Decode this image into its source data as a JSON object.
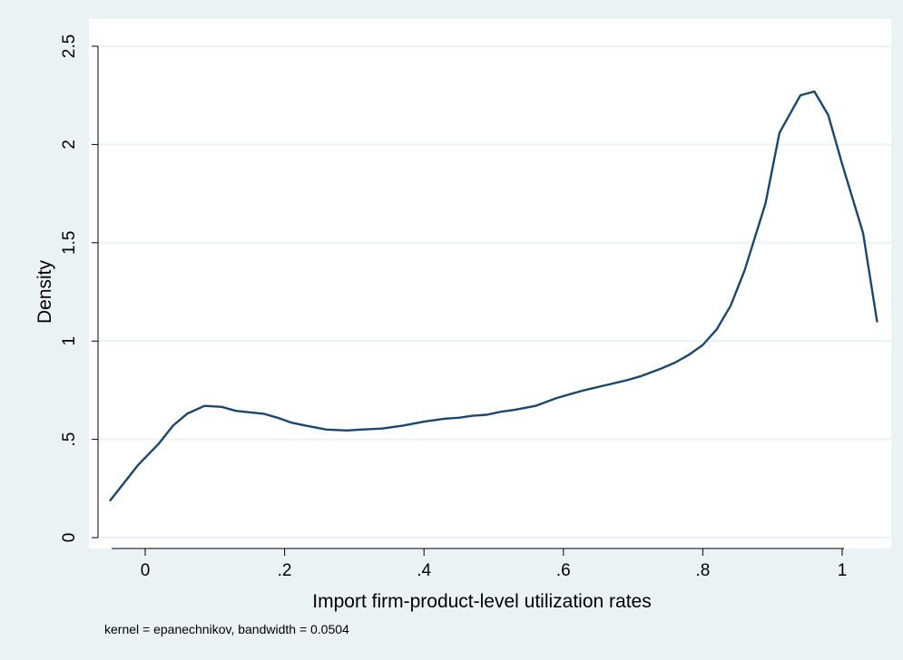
{
  "chart_data": {
    "type": "line",
    "title": "",
    "xlabel": "Import firm-product-level utilization rates",
    "ylabel": "Density",
    "note": "kernel = epanechnikov, bandwidth = 0.0504",
    "xlim": [
      -0.05,
      1.05
    ],
    "ylim": [
      0,
      2.5
    ],
    "xticks": [
      0,
      0.2,
      0.4,
      0.6,
      0.8,
      1
    ],
    "xtick_labels": [
      "0",
      ".2",
      ".4",
      ".6",
      ".8",
      "1"
    ],
    "yticks": [
      0,
      0.5,
      1,
      1.5,
      2,
      2.5
    ],
    "ytick_labels": [
      "0",
      ".5",
      "1",
      "1.5",
      "2",
      "2.5"
    ],
    "grid": true,
    "colors": {
      "background": "#eaf2f3",
      "plot": "#ffffff",
      "line": "#1a476f",
      "grid": "#eaf2f3"
    },
    "series": [
      {
        "x": [
          -0.05,
          -0.03,
          -0.01,
          0.02,
          0.04,
          0.06,
          0.085,
          0.11,
          0.13,
          0.17,
          0.19,
          0.21,
          0.23,
          0.26,
          0.29,
          0.31,
          0.34,
          0.37,
          0.4,
          0.43,
          0.45,
          0.47,
          0.49,
          0.51,
          0.53,
          0.56,
          0.59,
          0.61,
          0.63,
          0.66,
          0.69,
          0.71,
          0.74,
          0.76,
          0.78,
          0.8,
          0.82,
          0.84,
          0.86,
          0.89,
          0.91,
          0.94,
          0.96,
          0.98,
          1.0,
          1.03,
          1.05
        ],
        "y": [
          0.19,
          0.28,
          0.37,
          0.48,
          0.57,
          0.63,
          0.67,
          0.665,
          0.645,
          0.63,
          0.61,
          0.585,
          0.57,
          0.55,
          0.545,
          0.55,
          0.555,
          0.57,
          0.59,
          0.605,
          0.61,
          0.62,
          0.625,
          0.64,
          0.65,
          0.67,
          0.71,
          0.73,
          0.75,
          0.775,
          0.8,
          0.82,
          0.86,
          0.89,
          0.93,
          0.98,
          1.06,
          1.18,
          1.36,
          1.7,
          2.06,
          2.25,
          2.27,
          2.15,
          1.9,
          1.55,
          1.1
        ]
      }
    ]
  }
}
